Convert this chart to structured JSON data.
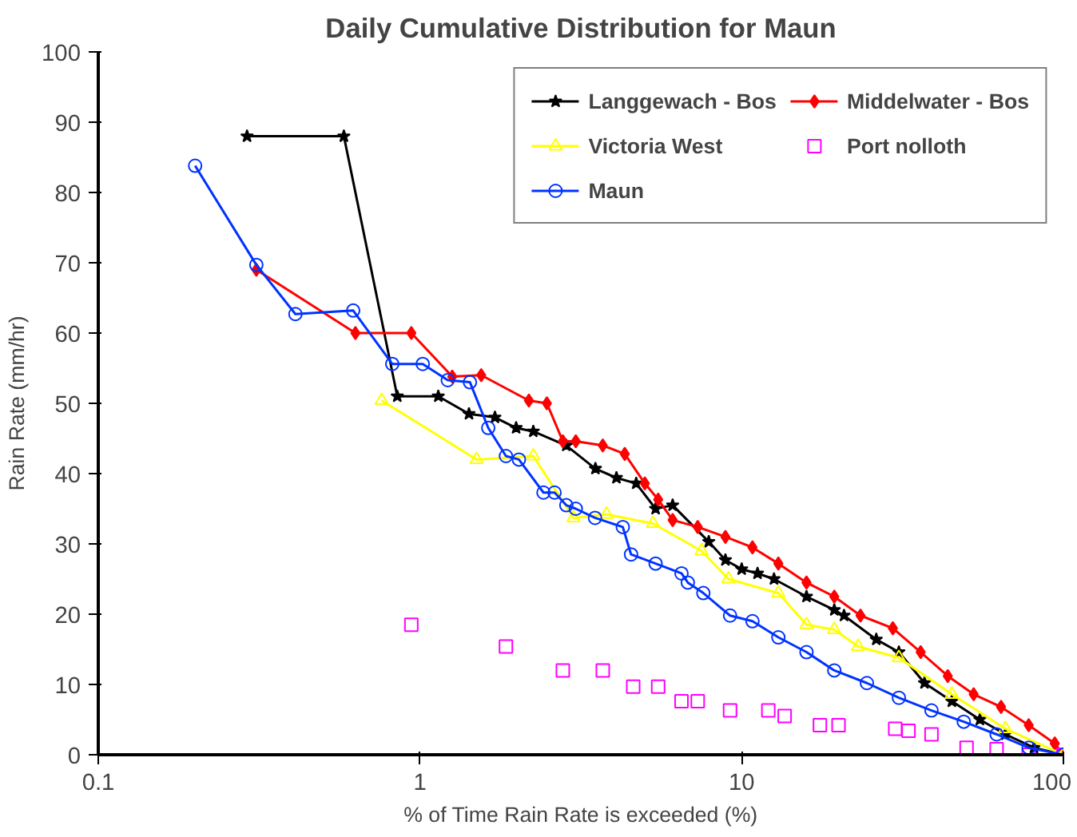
{
  "chart_data": {
    "type": "line",
    "title": "Daily Cumulative Distribution for Maun",
    "xlabel": "% of Time Rain Rate is exceeded (%)",
    "ylabel": "Rain Rate (mm/hr)",
    "log": "x",
    "xlim": [
      0.1,
      100
    ],
    "xticks": [
      0.1,
      1,
      10,
      100
    ],
    "ylim": [
      0,
      100
    ],
    "yticks": [
      0,
      10,
      20,
      30,
      40,
      50,
      60,
      70,
      80,
      90,
      100
    ],
    "grid": false,
    "legend": "top right",
    "series": [
      {
        "name": "Langgewach - Bos",
        "color": "#000000",
        "marker": "star",
        "x": [
          0.29,
          0.58,
          0.85,
          1.14,
          1.42,
          1.71,
          1.99,
          2.25,
          2.85,
          3.51,
          4.08,
          4.7,
          5.4,
          6.1,
          7.9,
          8.9,
          10,
          11.2,
          12.6,
          15.9,
          19.4,
          20.8,
          26.2,
          30.8,
          37,
          45,
          55,
          66,
          81,
          100
        ],
        "values": [
          88,
          88,
          51,
          51,
          48.5,
          48,
          46.5,
          46,
          44,
          40.7,
          39.4,
          38.6,
          35,
          35.5,
          30.3,
          27.7,
          26.4,
          25.8,
          25,
          22.5,
          20.6,
          19.8,
          16.4,
          14.6,
          10.2,
          7.6,
          5,
          2.9,
          1,
          0
        ]
      },
      {
        "name": "Middelwater - Bos",
        "color": "#ff0000",
        "marker": "diamond",
        "x": [
          0.31,
          0.63,
          0.94,
          1.26,
          1.55,
          2.18,
          2.48,
          2.78,
          3.05,
          3.7,
          4.33,
          5.0,
          5.5,
          6.1,
          7.3,
          8.9,
          10.8,
          13,
          15.9,
          19.4,
          23.4,
          29.5,
          36,
          43.7,
          52.6,
          64,
          78,
          94,
          100
        ],
        "values": [
          69,
          60,
          60,
          53.8,
          54,
          50.4,
          50,
          44.6,
          44.6,
          44,
          42.8,
          38.6,
          36.3,
          33.4,
          32.4,
          31,
          29.5,
          27.2,
          24.5,
          22.5,
          19.8,
          18,
          14.6,
          11.2,
          8.6,
          6.8,
          4.2,
          1.6,
          0
        ]
      },
      {
        "name": "Victoria West",
        "color": "#ffff00",
        "marker": "triangle",
        "x": [
          0.76,
          1.5,
          2.25,
          3.0,
          3.8,
          5.3,
          7.5,
          9.1,
          13,
          15.9,
          19.4,
          23,
          30.8,
          45,
          66,
          100
        ],
        "values": [
          50.4,
          42,
          42.5,
          33.7,
          34.2,
          32.9,
          29,
          25,
          23,
          18.5,
          17.8,
          15.4,
          13.8,
          8.6,
          3.7,
          0
        ]
      },
      {
        "name": "Port nolloth",
        "color": "#ff00ff",
        "type": "scatter",
        "marker": "square",
        "x": [
          0.94,
          1.85,
          2.78,
          3.7,
          4.6,
          5.5,
          6.5,
          7.3,
          9.2,
          12.1,
          13.6,
          17.5,
          20,
          30,
          33,
          38.9,
          50,
          62,
          78,
          100
        ],
        "values": [
          18.5,
          15.4,
          12,
          12,
          9.7,
          9.7,
          7.6,
          7.6,
          6.3,
          6.3,
          5.5,
          4.2,
          4.2,
          3.7,
          3.4,
          2.9,
          1,
          0.8,
          0,
          0
        ]
      },
      {
        "name": "Maun",
        "color": "#0033ff",
        "marker": "circle",
        "x": [
          0.2,
          0.31,
          0.41,
          0.62,
          0.82,
          1.02,
          1.22,
          1.43,
          1.63,
          1.85,
          2.03,
          2.42,
          2.62,
          2.85,
          3.05,
          3.5,
          4.27,
          4.53,
          5.4,
          6.5,
          6.8,
          7.6,
          9.2,
          10.8,
          13,
          15.9,
          19.4,
          24.5,
          30.8,
          38.9,
          49,
          62,
          78,
          100
        ],
        "values": [
          83.8,
          69.7,
          62.7,
          63.2,
          55.6,
          55.6,
          53.3,
          53,
          46.5,
          42.5,
          42,
          37.3,
          37.3,
          35.5,
          35,
          33.7,
          32.4,
          28.5,
          27.2,
          25.8,
          24.5,
          23,
          19.8,
          19,
          16.7,
          14.6,
          12,
          10.2,
          8.1,
          6.3,
          4.7,
          2.9,
          1,
          0
        ]
      }
    ]
  }
}
